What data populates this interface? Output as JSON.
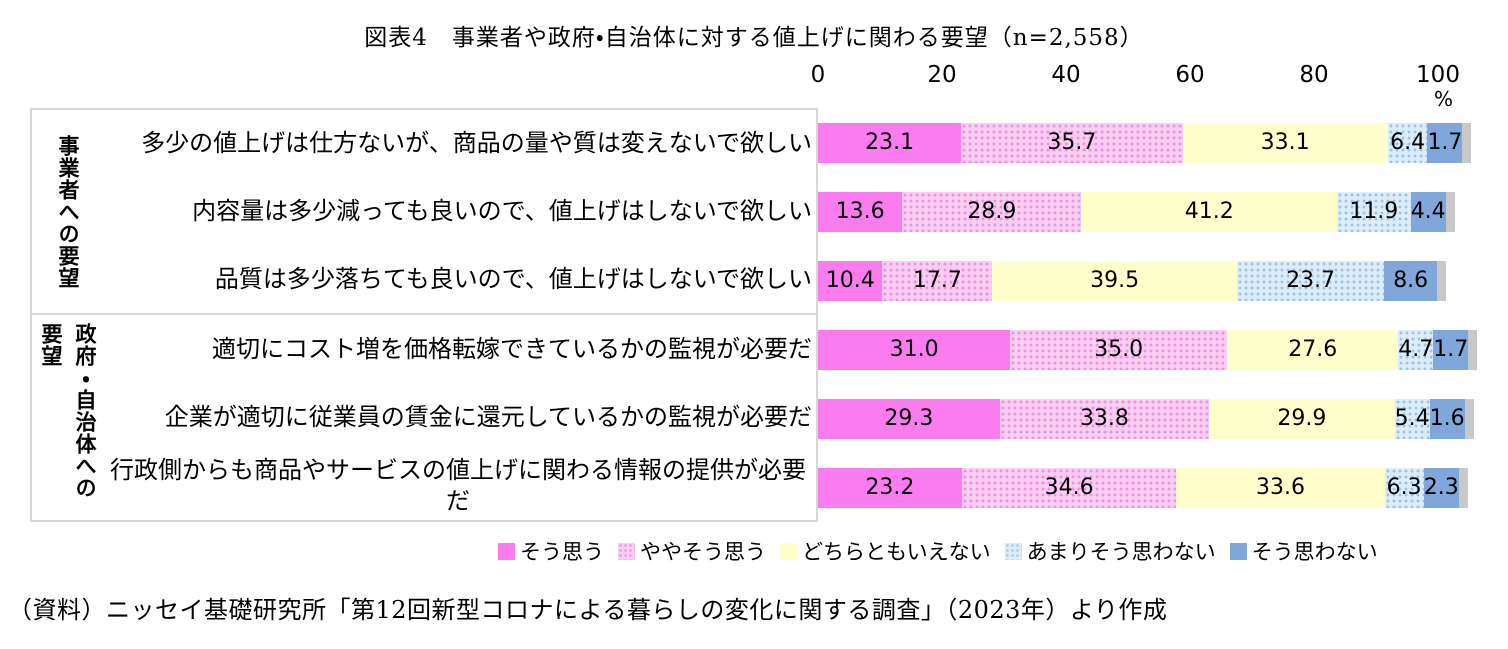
{
  "title": "図表4　事業者や政府・自治体に対する値上げに関わる要望（n=2,558）",
  "axis": {
    "ticks": [
      0,
      20,
      40,
      60,
      80,
      100
    ],
    "unit": "%"
  },
  "chart_data": {
    "type": "bar",
    "stacked": true,
    "orientation": "horizontal",
    "xlim": [
      0,
      100
    ],
    "grid": false,
    "legend_position": "bottom",
    "categories": [
      "多少の値上げは仕方ないが、商品の量や質は変えないで欲しい",
      "内容量は多少減っても良いので、値上げはしないで欲しい",
      "品質は多少落ちても良いので、値上げはしないで欲しい",
      "適切にコスト増を価格転嫁できているかの監視が必要だ",
      "企業が適切に従業員の賃金に還元しているかの監視が必要だ",
      "行政側からも商品やサービスの値上げに関わる情報の提供が必要だ"
    ],
    "groups": [
      {
        "label": "事業者への要望",
        "rows": [
          0,
          1,
          2
        ]
      },
      {
        "label": "政府・自治体への要望",
        "rows": [
          3,
          4,
          5
        ]
      }
    ],
    "series": [
      {
        "name": "そう思う",
        "color": "#FA7CEF",
        "pattern": "solid",
        "values": [
          23.1,
          13.6,
          10.4,
          31.0,
          29.3,
          23.2
        ]
      },
      {
        "name": "ややそう思う",
        "color": "#F9CEF2",
        "pattern": "dots",
        "dot_color": "#EE8FE0",
        "values": [
          35.7,
          28.9,
          17.7,
          35.0,
          33.8,
          34.6
        ]
      },
      {
        "name": "どちらともいえない",
        "color": "#FFFFCC",
        "pattern": "solid",
        "values": [
          33.1,
          41.2,
          39.5,
          27.6,
          29.9,
          33.6
        ]
      },
      {
        "name": "あまりそう思わない",
        "color": "#DCECF8",
        "pattern": "dots",
        "dot_color": "#9DC3E6",
        "values": [
          6.4,
          11.9,
          23.7,
          4.7,
          5.4,
          6.3
        ]
      },
      {
        "name": "そう思わない",
        "color": "#7FA7DA",
        "pattern": "solid",
        "values": [
          1.7,
          4.4,
          8.6,
          1.7,
          1.6,
          2.3
        ]
      }
    ]
  },
  "source": "（資料）ニッセイ基礎研究所「第12回新型コロナによる暮らしの変化に関する調査」（2023年）より作成"
}
